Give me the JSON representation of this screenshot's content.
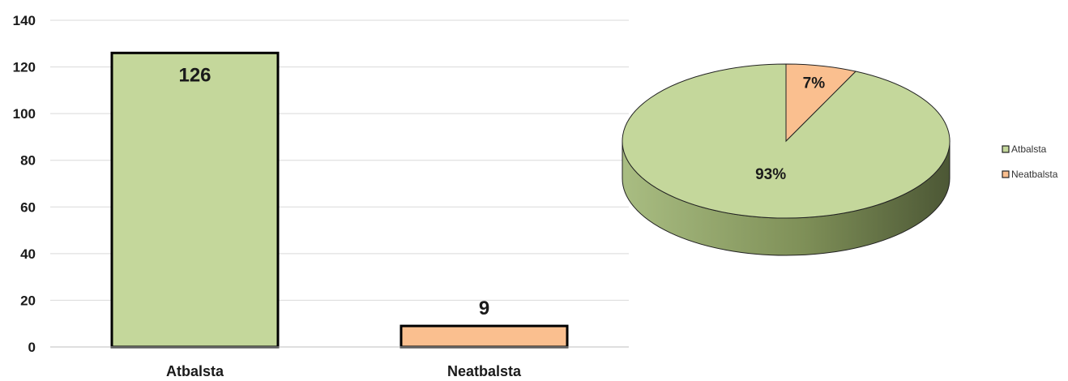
{
  "chart_data": [
    {
      "type": "bar",
      "categories": [
        "Atbalsta",
        "Neatbalsta"
      ],
      "values": [
        126,
        9
      ],
      "data_labels": [
        "126",
        "9"
      ],
      "ylim": [
        0,
        140
      ],
      "yticks": [
        "0",
        "20",
        "40",
        "60",
        "80",
        "100",
        "120",
        "140"
      ],
      "grid": true,
      "colors": [
        "#c4d79b",
        "#fabf8f"
      ]
    },
    {
      "type": "pie",
      "style": "3d",
      "labels": [
        "Atbalsta",
        "Neatbalsta"
      ],
      "values": [
        93,
        7
      ],
      "data_labels": [
        "93%",
        "7%"
      ],
      "legend": "right",
      "colors": [
        "#c4d79b",
        "#fabf8f"
      ]
    }
  ]
}
